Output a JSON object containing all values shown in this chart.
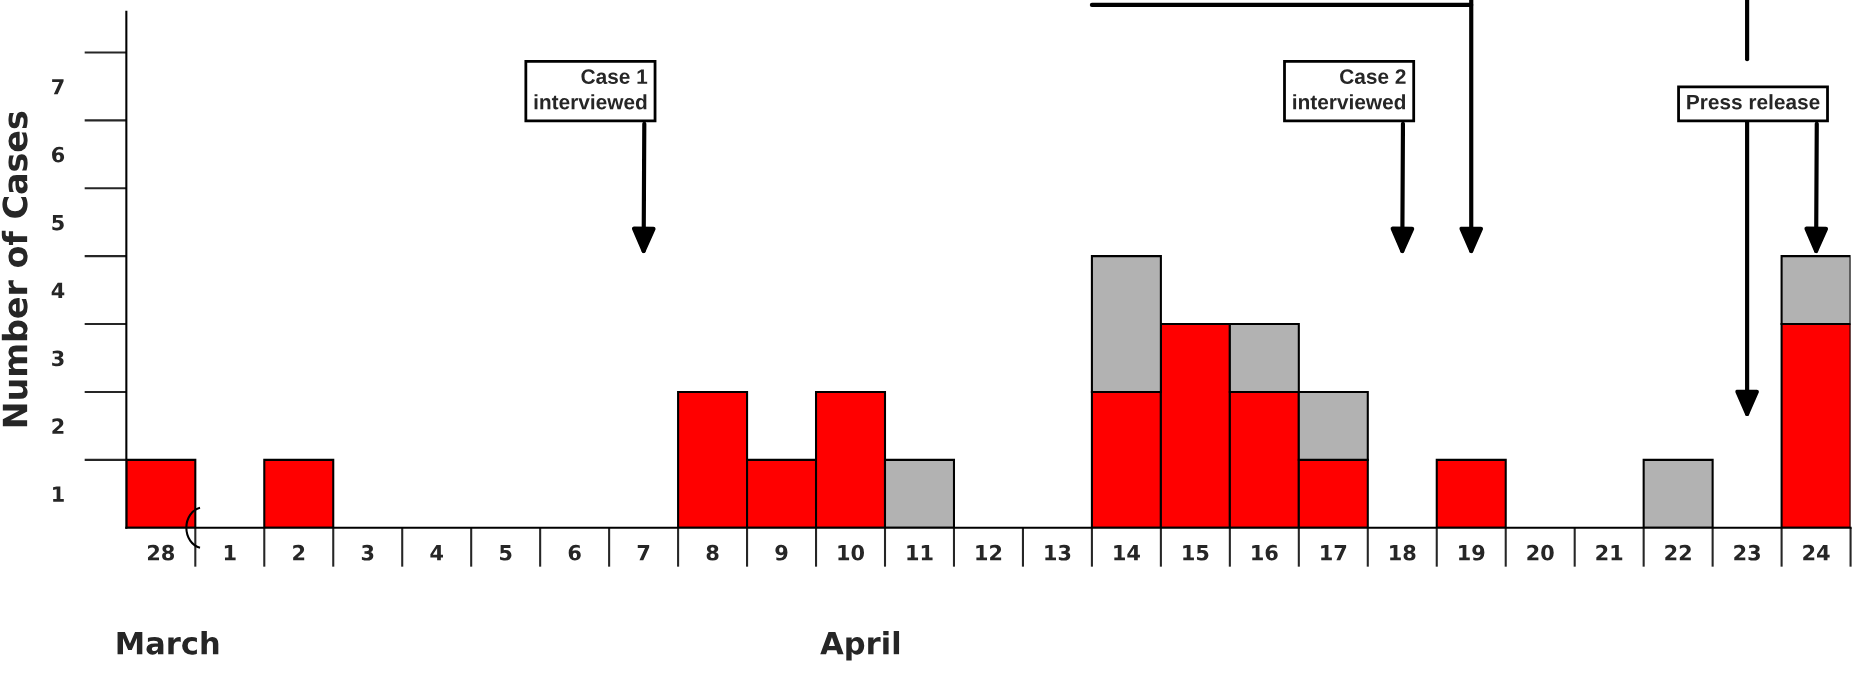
{
  "chart_data": {
    "type": "bar",
    "stacked": true,
    "ylabel": "Number of Cases",
    "categories": [
      "28",
      "1",
      "2",
      "3",
      "4",
      "5",
      "6",
      "7",
      "8",
      "9",
      "10",
      "11",
      "12",
      "13",
      "14",
      "15",
      "16",
      "17",
      "18",
      "19",
      "20",
      "21",
      "22",
      "23",
      "24"
    ],
    "series": [
      {
        "color": "#ff0000",
        "values": [
          1,
          0,
          1,
          0,
          0,
          0,
          0,
          0,
          2,
          1,
          2,
          0,
          0,
          0,
          2,
          3,
          2,
          1,
          0,
          1,
          0,
          0,
          0,
          0,
          3
        ]
      },
      {
        "color": "#b2b2b2",
        "values": [
          0,
          0,
          0,
          0,
          0,
          0,
          0,
          0,
          0,
          0,
          0,
          1,
          0,
          0,
          2,
          0,
          1,
          1,
          0,
          0,
          0,
          0,
          1,
          0,
          1
        ]
      }
    ],
    "ylim": [
      0,
      7.6
    ],
    "yticks": [
      {
        "value": 0.5,
        "label": "1"
      },
      {
        "value": 1.5,
        "label": "2"
      },
      {
        "value": 2.5,
        "label": "3"
      },
      {
        "value": 3.5,
        "label": "4"
      },
      {
        "value": 4.5,
        "label": "5"
      },
      {
        "value": 5.5,
        "label": "6"
      },
      {
        "value": 6.5,
        "label": "7"
      }
    ],
    "grid": false,
    "legend": false,
    "annotations": [
      "Case 1\ninterviewed",
      "Case 2\ninterviewed",
      "Press release",
      "March",
      "April"
    ]
  }
}
